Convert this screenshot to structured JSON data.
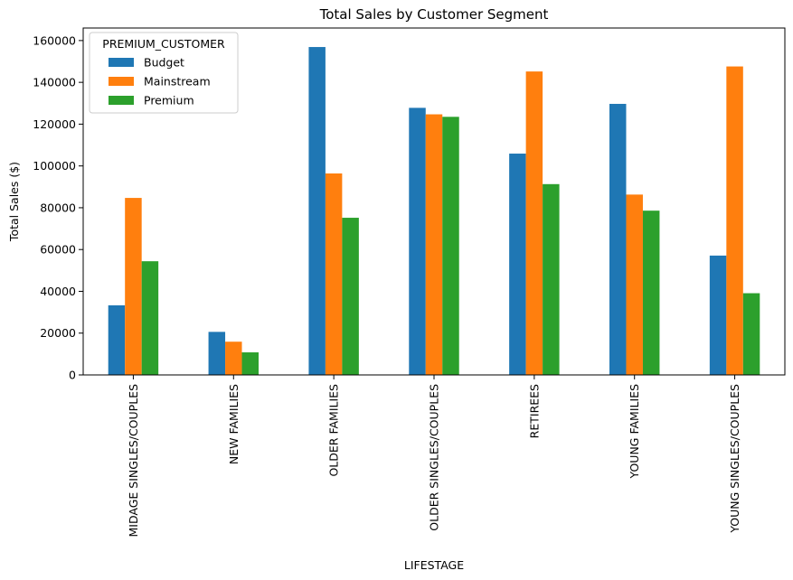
{
  "chart_data": {
    "type": "bar",
    "title": "Total Sales by Customer Segment",
    "xlabel": "LIFESTAGE",
    "ylabel": "Total Sales ($)",
    "ylim": [
      0,
      166000
    ],
    "yticks": [
      0,
      20000,
      40000,
      60000,
      80000,
      100000,
      120000,
      140000,
      160000
    ],
    "grid": false,
    "legend": {
      "title": "PREMIUM_CUSTOMER",
      "placement": "top-left"
    },
    "categories": [
      "MIDAGE SINGLES/COUPLES",
      "NEW FAMILIES",
      "OLDER FAMILIES",
      "OLDER SINGLES/COUPLES",
      "RETIREES",
      "YOUNG FAMILIES",
      "YOUNG SINGLES/COUPLES"
    ],
    "series": [
      {
        "name": "Budget",
        "color": "#1f77b4",
        "values": [
          33300,
          20600,
          156900,
          127800,
          105900,
          129700,
          57100
        ]
      },
      {
        "name": "Mainstream",
        "color": "#ff7f0e",
        "values": [
          84700,
          15900,
          96400,
          124700,
          145200,
          86300,
          147600
        ]
      },
      {
        "name": "Premium",
        "color": "#2ca02c",
        "values": [
          54400,
          10800,
          75200,
          123500,
          91300,
          78600,
          39100
        ]
      }
    ]
  }
}
